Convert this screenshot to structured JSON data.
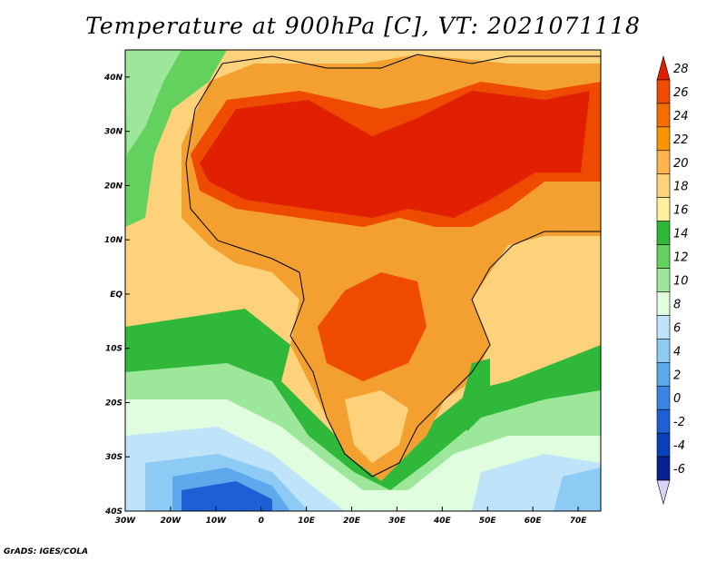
{
  "title": "Temperature at 900hPa [C], VT: 2021071118",
  "credit": "GrADS: IGES/COLA",
  "colors": {
    "water": "#9fe9a0",
    "ocean_cold": "#1c58d8",
    "hot": "#e02000",
    "desert": "#e84a00",
    "warm": "#f4a030",
    "mild": "#fde08a",
    "cool": "#5ac85a"
  },
  "map": {
    "lon_range": [
      -30,
      75
    ],
    "lat_range": [
      -40,
      45
    ],
    "x_ticks": [
      "30W",
      "20W",
      "10W",
      "0",
      "10E",
      "20E",
      "30E",
      "40E",
      "50E",
      "60E",
      "70E"
    ],
    "y_ticks": [
      "40N",
      "30N",
      "20N",
      "10N",
      "EQ",
      "10S",
      "20S",
      "30S",
      "40S"
    ]
  },
  "colorbar": {
    "labels": [
      "28",
      "26",
      "24",
      "22",
      "20",
      "18",
      "16",
      "14",
      "12",
      "10",
      "8",
      "6",
      "4",
      "2",
      "0",
      "-2",
      "-4",
      "-6"
    ],
    "colors": [
      "#e02000",
      "#ee4a00",
      "#f56d00",
      "#fa9500",
      "#fdb44c",
      "#fed27a",
      "#fff0a0",
      "#2fb83a",
      "#63d15e",
      "#9ce79a",
      "#e0fde0",
      "#bfe4fa",
      "#8ecbf4",
      "#5ea9ec",
      "#3a86e2",
      "#1d60d6",
      "#0a3fbe",
      "#08208f",
      "#d8d4f8"
    ]
  }
}
